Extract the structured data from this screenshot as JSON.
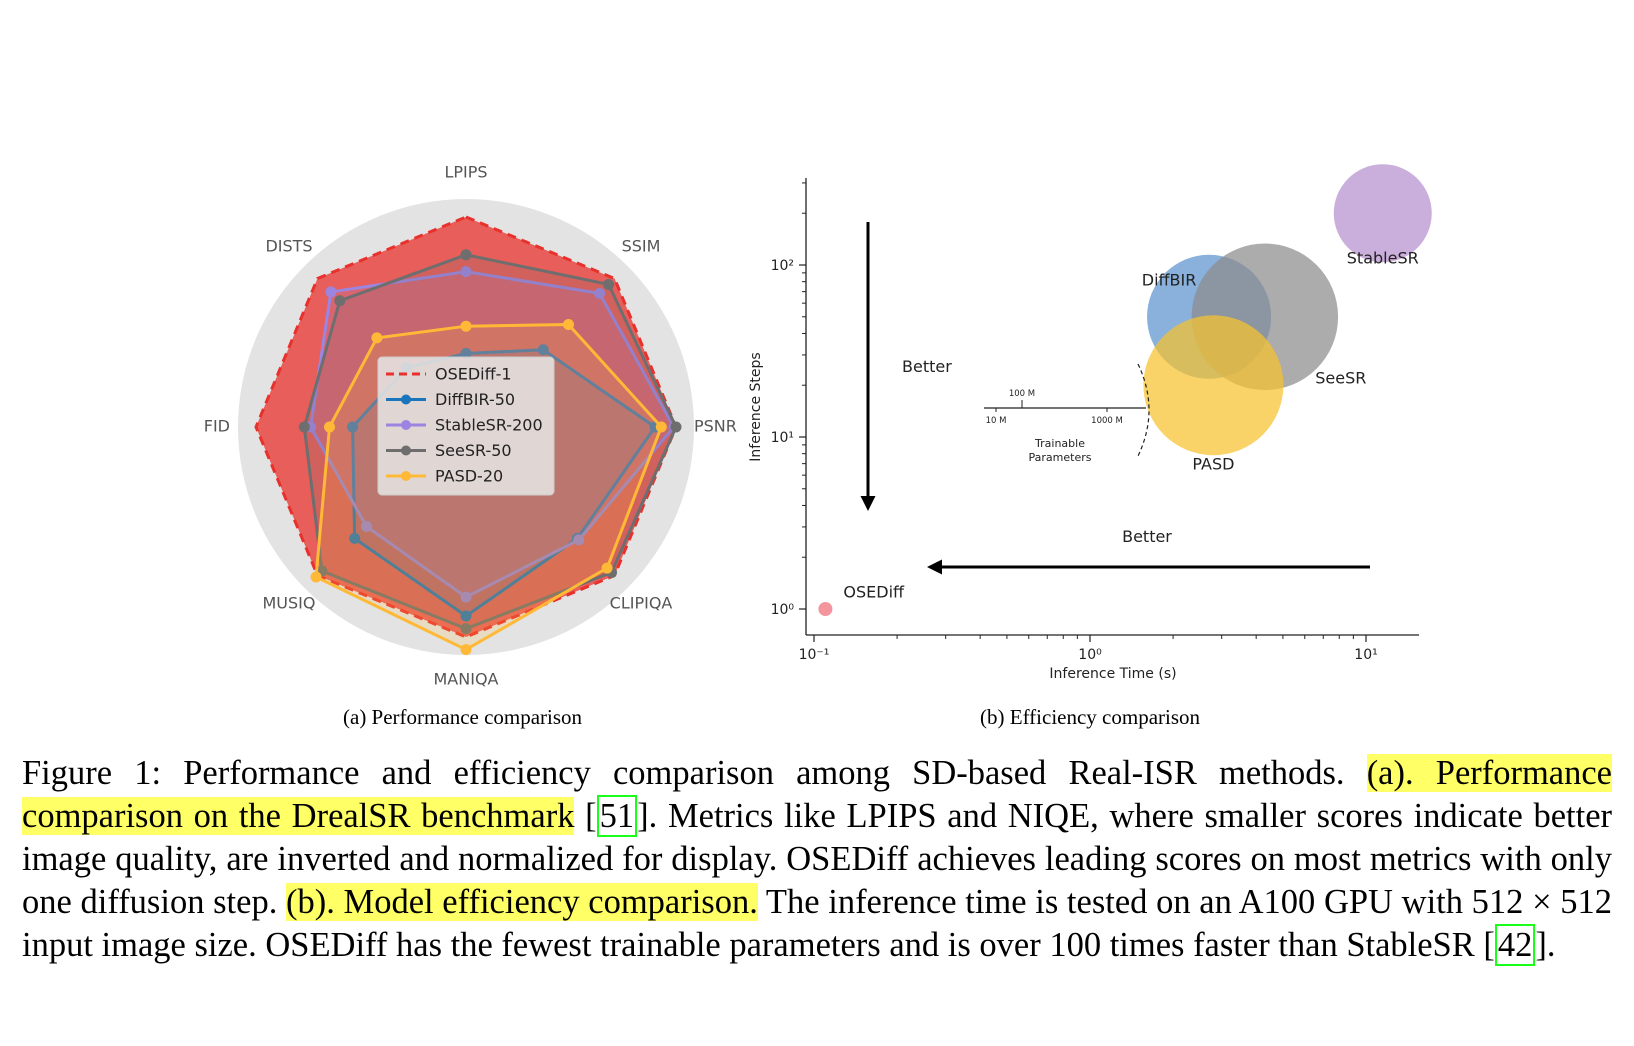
{
  "figure": {
    "radar": {
      "axes": [
        "LPIPS",
        "SSIM",
        "PSNR",
        "CLIPIQA",
        "MANIQA",
        "MUSIQ",
        "FID",
        "DISTS"
      ],
      "series": [
        {
          "name": "OSEDiff-1",
          "color": "#e8312c",
          "style": "dashed",
          "values": [
            1.0,
            1.0,
            1.0,
            1.0,
            1.0,
            1.0,
            1.0,
            1.0
          ]
        },
        {
          "name": "DiffBIR-50",
          "color": "#1b75bc",
          "style": "solid",
          "values": [
            0.35,
            0.52,
            0.9,
            0.75,
            0.9,
            0.75,
            0.54,
            0.4
          ]
        },
        {
          "name": "StableSR-200",
          "color": "#9b85e0",
          "style": "solid",
          "values": [
            0.74,
            0.9,
            0.99,
            0.76,
            0.81,
            0.67,
            0.74,
            0.91
          ]
        },
        {
          "name": "SeeSR-50",
          "color": "#6e6e6e",
          "style": "solid",
          "values": [
            0.82,
            0.96,
            1.0,
            0.98,
            0.96,
            0.97,
            0.77,
            0.85
          ]
        },
        {
          "name": "PASD-20",
          "color": "#ffb937",
          "style": "solid",
          "values": [
            0.48,
            0.69,
            0.93,
            0.95,
            1.06,
            1.01,
            0.65,
            0.6
          ]
        }
      ]
    },
    "efficiency": {
      "x_label": "Inference Time (s)",
      "y_label": "Inference Steps",
      "x_scale": "log",
      "y_scale": "log",
      "x_ticks": [
        "10⁻¹",
        "10⁰",
        "10¹"
      ],
      "y_ticks": [
        "10⁰",
        "10¹",
        "10²"
      ],
      "better_vertical": "Better",
      "better_horizontal": "Better",
      "points": [
        {
          "name": "OSEDiff",
          "time_s": 0.11,
          "steps": 1,
          "color": "#f06c78",
          "params_m": 8.5
        },
        {
          "name": "StableSR",
          "time_s": 11.5,
          "steps": 200,
          "color": "#b58fcf",
          "params_m": 150
        },
        {
          "name": "DiffBIR",
          "time_s": 2.7,
          "steps": 50,
          "color": "#5b93cd",
          "params_m": 385
        },
        {
          "name": "SeeSR",
          "time_s": 4.3,
          "steps": 50,
          "color": "#8c8c8c",
          "params_m": 750
        },
        {
          "name": "PASD",
          "time_s": 2.8,
          "steps": 20,
          "color": "#f7c22e",
          "params_m": 625
        }
      ],
      "size_legend": {
        "title": "Trainable Parameters",
        "ticks": [
          "10 M",
          "100 M",
          "1000 M"
        ]
      }
    },
    "subcaption_a": "(a) Performance comparison",
    "subcaption_b": "(b) Efficiency comparison"
  },
  "caption": {
    "label": "Figure 1: ",
    "text1": "Performance and efficiency comparison among SD-based Real-ISR methods. ",
    "hl1": "(a). Performance comparison on the DrealSR benchmark",
    "ref1": "51",
    "text2": ". Metrics like LPIPS and NIQE, where smaller scores indicate better image quality, are inverted and normalized for display. OSEDiff achieves leading scores on most metrics with only one diffusion step. ",
    "hl2": "(b). Model efficiency comparison.",
    "text3": " The inference time is tested on an A100 GPU with 512 × 512 input image size. OSEDiff has the fewest trainable parameters and is over 100 times faster than StableSR ",
    "ref2": "42",
    "text4": "."
  }
}
